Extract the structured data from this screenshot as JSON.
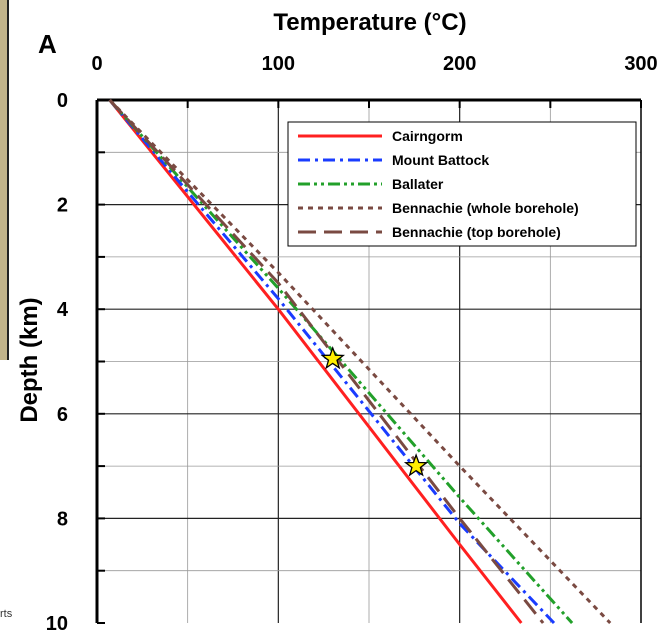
{
  "panel_label": "A",
  "edge_fragment": "rts",
  "chart_data": {
    "type": "line",
    "title": "Temperature (°C)",
    "xlabel": "Temperature (°C)",
    "ylabel": "Depth (km)",
    "x_axis_position": "top",
    "y_axis_inverted": true,
    "xlim": [
      0,
      300
    ],
    "ylim": [
      0,
      10
    ],
    "x_ticks": [
      0,
      100,
      200,
      300
    ],
    "y_ticks": [
      0,
      2,
      4,
      6,
      8,
      10
    ],
    "grid": true,
    "legend_position": "top-right",
    "series": [
      {
        "name": "Cairngorm",
        "color": "#ff2020",
        "dash": "solid",
        "points": [
          [
            7,
            0
          ],
          [
            100,
            4
          ],
          [
            200,
            8.5
          ],
          [
            234,
            10
          ]
        ]
      },
      {
        "name": "Mount Battock",
        "color": "#1a3cff",
        "dash": "dashdot",
        "points": [
          [
            7,
            0
          ],
          [
            100,
            3.8
          ],
          [
            200,
            8.1
          ],
          [
            252,
            10
          ]
        ]
      },
      {
        "name": "Ballater",
        "color": "#22a02a",
        "dash": "dashdotdot",
        "points": [
          [
            7,
            0
          ],
          [
            100,
            3.6
          ],
          [
            200,
            7.6
          ],
          [
            262,
            10
          ]
        ]
      },
      {
        "name": "Bennachie (whole borehole)",
        "color": "#7a4a42",
        "dash": "dotted",
        "points": [
          [
            7,
            0
          ],
          [
            100,
            3.3
          ],
          [
            200,
            7.0
          ],
          [
            283,
            10
          ]
        ]
      },
      {
        "name": "Bennachie (top borehole)",
        "color": "#7a4a42",
        "dash": "longdash",
        "points": [
          [
            7,
            0
          ],
          [
            100,
            3.5
          ],
          [
            200,
            8.0
          ],
          [
            246,
            10
          ]
        ]
      }
    ],
    "markers": [
      {
        "type": "star",
        "color": "#ffee00",
        "x": 130,
        "y": 4.95
      },
      {
        "type": "star",
        "color": "#ffee00",
        "x": 176,
        "y": 7.0
      }
    ]
  }
}
